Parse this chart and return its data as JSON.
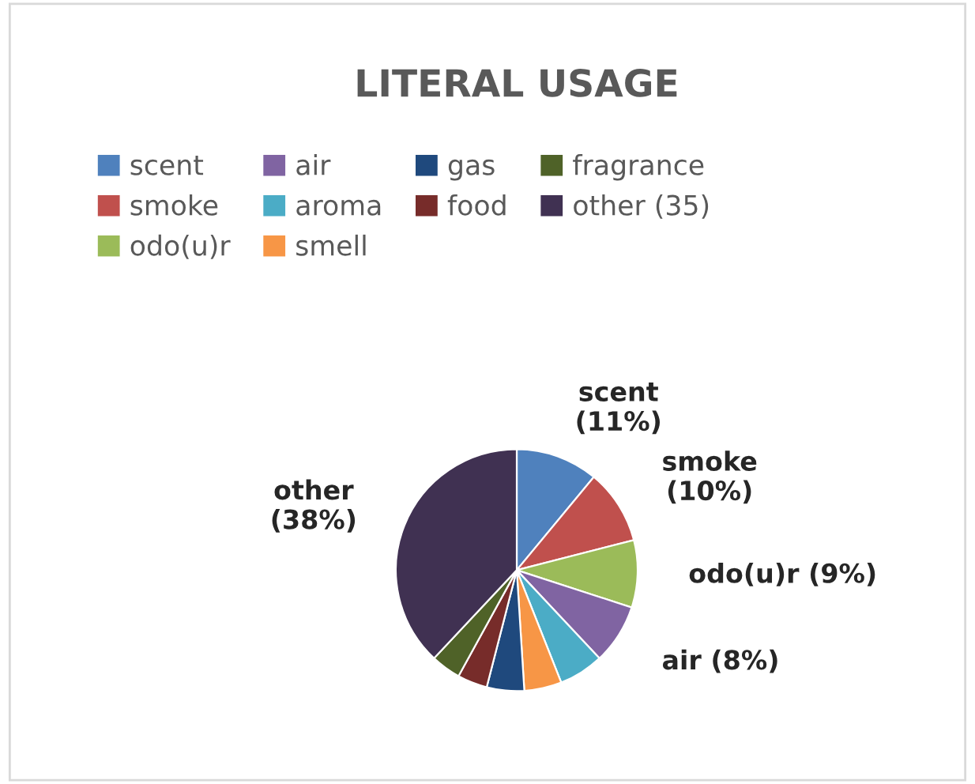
{
  "chart_data": {
    "type": "pie",
    "title": "LITERAL USAGE",
    "categories": [
      "scent",
      "smoke",
      "odo(u)r",
      "air",
      "aroma",
      "smell",
      "gas",
      "food",
      "fragrance",
      "other (35)"
    ],
    "values": [
      11,
      10,
      9,
      8,
      6,
      5,
      5,
      4,
      4,
      38
    ],
    "colors": [
      "#4f81bd",
      "#c0504d",
      "#9bbb59",
      "#8064a2",
      "#4bacc6",
      "#f79646",
      "#1f497d",
      "#772c2a",
      "#4f6228",
      "#403152"
    ],
    "value_labels": [
      "scent\n(11%)",
      "smoke\n(10%)",
      "odo(u)r (9%)",
      "air (8%)",
      null,
      null,
      null,
      null,
      null,
      "other\n(38%)"
    ],
    "legend": "top"
  }
}
